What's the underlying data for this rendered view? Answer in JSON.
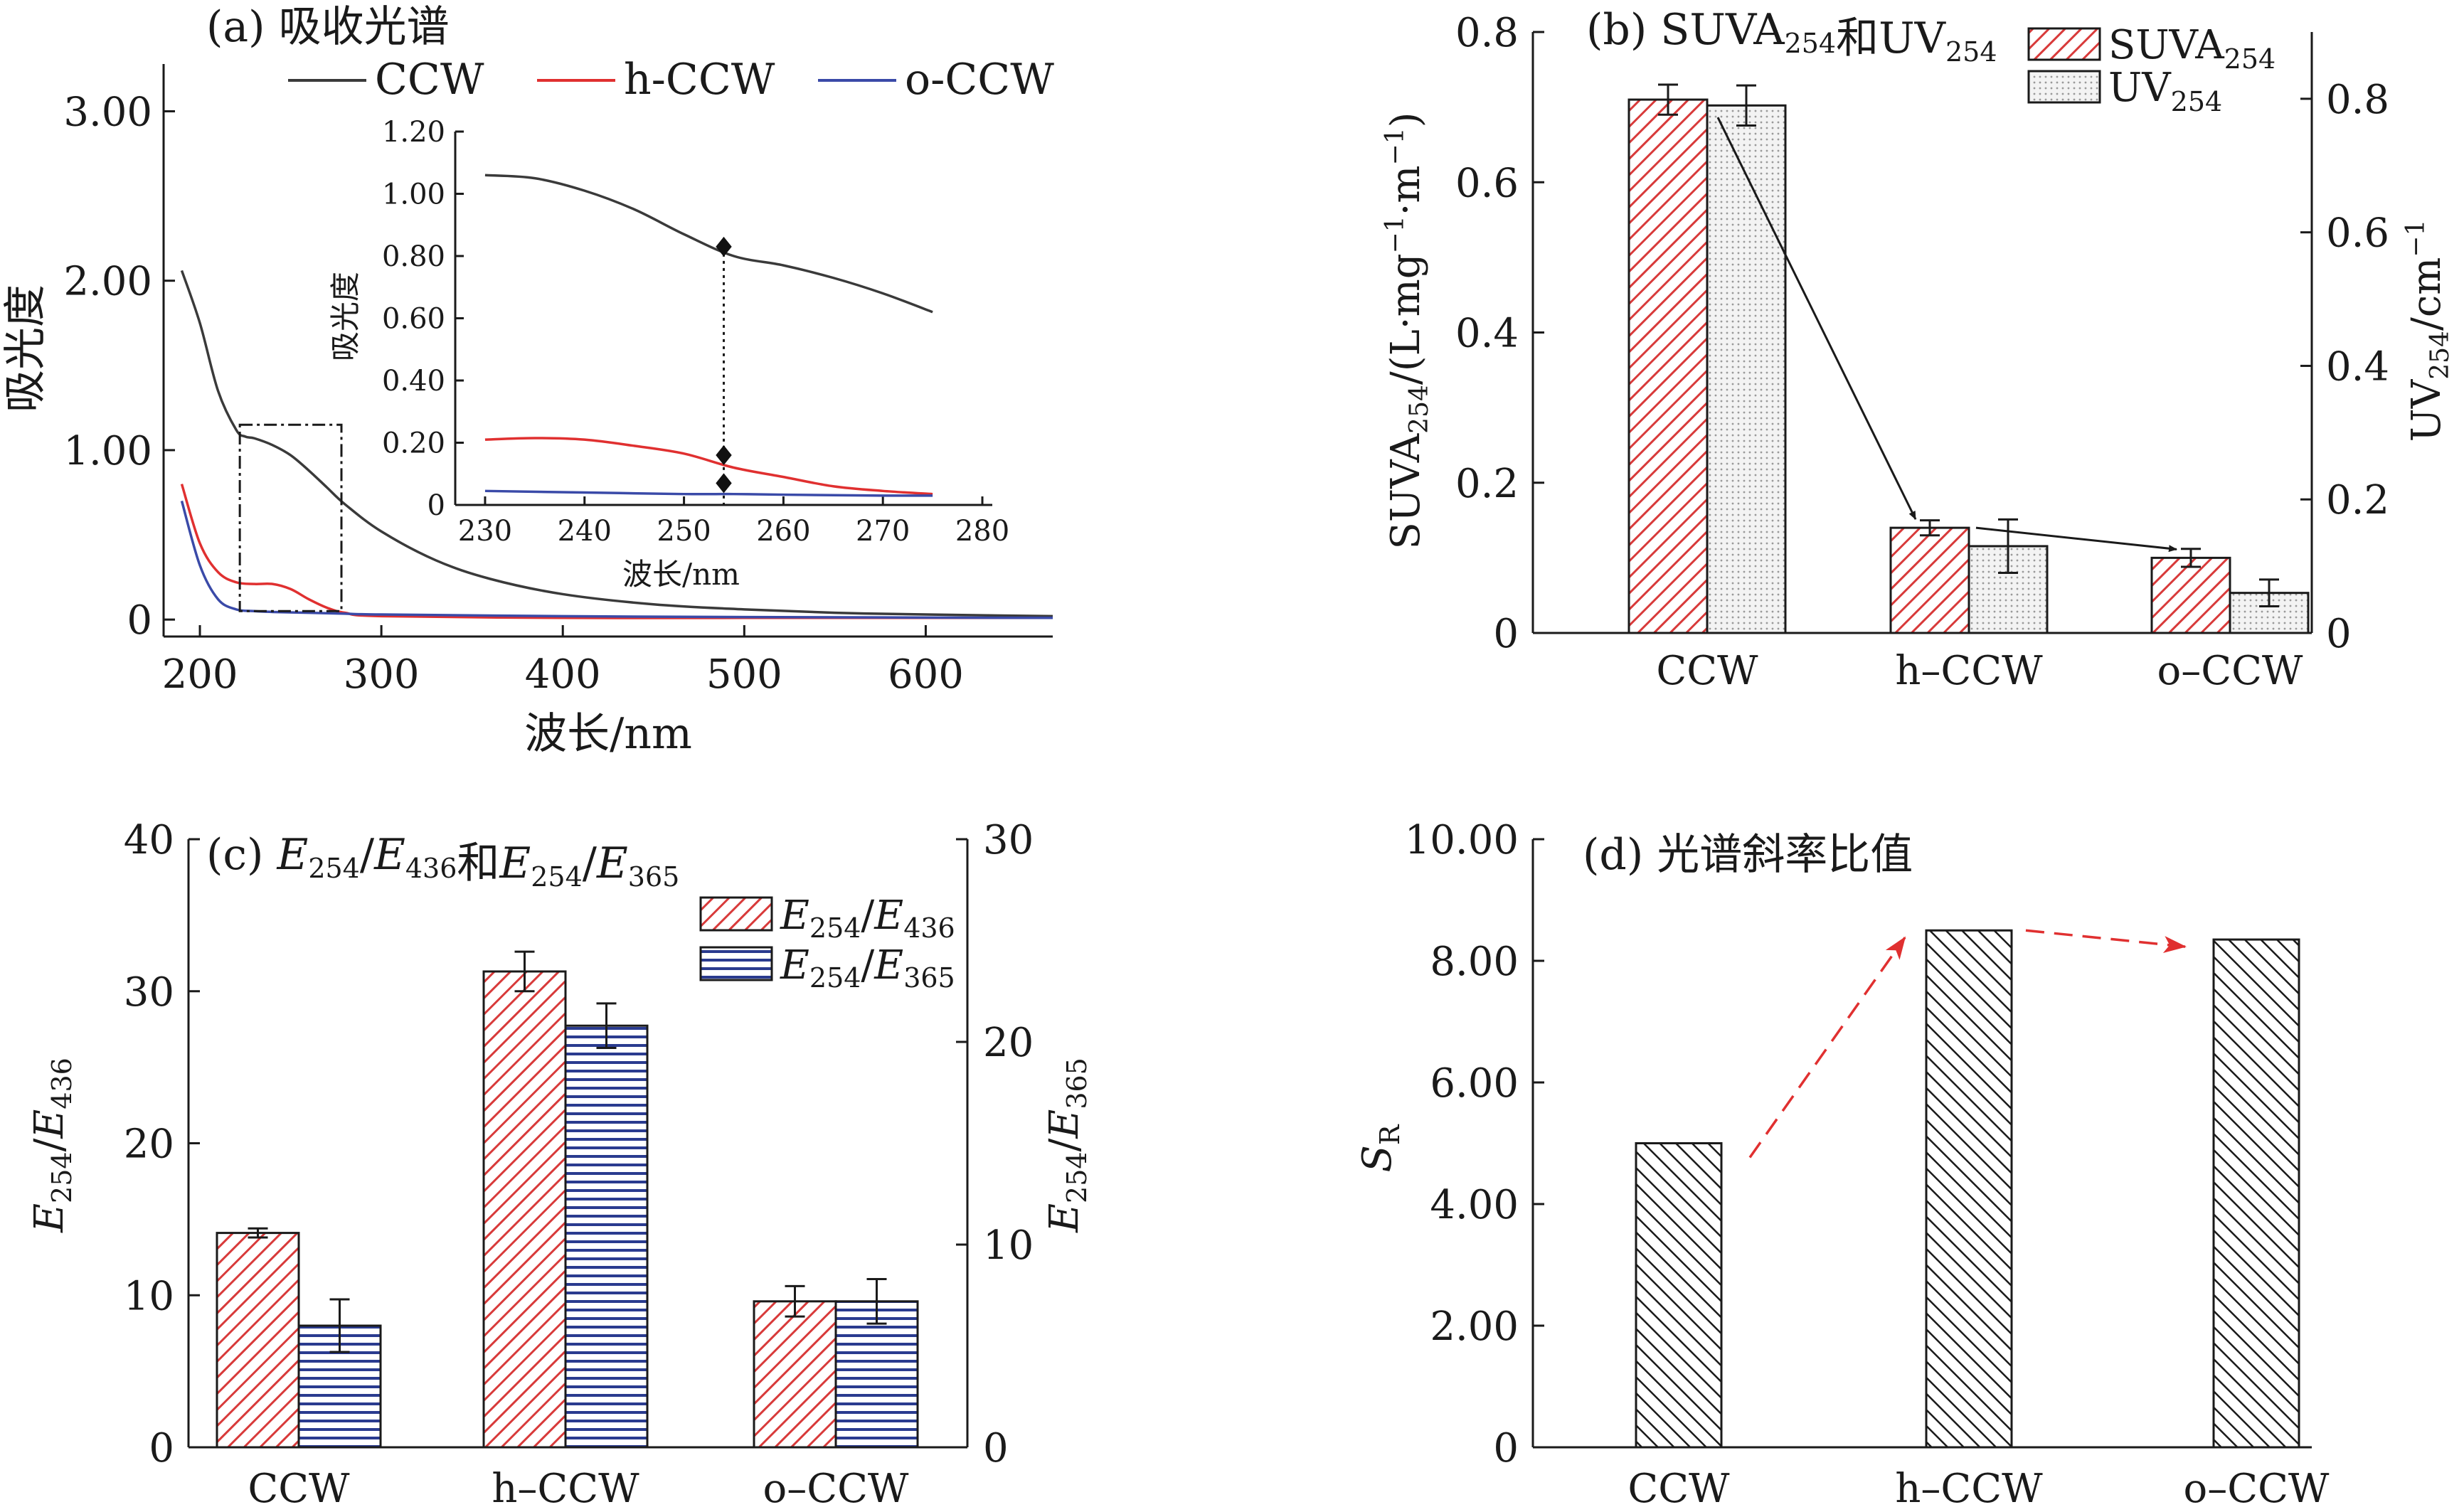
{
  "chart_data": [
    {
      "panel": "a",
      "type": "line",
      "title": "(a) 吸收光谱",
      "xlabel": "波长/nm",
      "ylabel": "吸光度",
      "xlim": [
        180,
        670
      ],
      "ylim": [
        -0.1,
        3.3
      ],
      "xticks": [
        200,
        300,
        400,
        500,
        600
      ],
      "xtick_labels": [
        "200",
        "300",
        "400",
        "500",
        "600"
      ],
      "yticks": [
        0,
        1,
        2,
        3
      ],
      "ytick_labels": [
        "0",
        "1.00",
        "2.00",
        "3.00"
      ],
      "legend_position": "top",
      "series": [
        {
          "name": "CCW",
          "color": "#3a3a3a",
          "x": [
            190,
            200,
            210,
            220,
            225,
            230,
            240,
            250,
            260,
            270,
            280,
            300,
            330,
            360,
            400,
            450,
            500,
            550,
            600,
            670
          ],
          "y": [
            2.06,
            1.75,
            1.35,
            1.12,
            1.08,
            1.07,
            1.03,
            0.97,
            0.88,
            0.78,
            0.68,
            0.52,
            0.35,
            0.24,
            0.15,
            0.09,
            0.06,
            0.04,
            0.03,
            0.02
          ]
        },
        {
          "name": "h-CCW",
          "color": "#e03030",
          "x": [
            190,
            200,
            210,
            220,
            230,
            240,
            250,
            260,
            270,
            280,
            300,
            400,
            500,
            670
          ],
          "y": [
            0.8,
            0.45,
            0.28,
            0.22,
            0.21,
            0.21,
            0.18,
            0.12,
            0.07,
            0.04,
            0.02,
            0.01,
            0.01,
            0.01
          ]
        },
        {
          "name": "o-CCW",
          "color": "#3a4aa8",
          "x": [
            190,
            200,
            210,
            220,
            230,
            240,
            260,
            280,
            300,
            400,
            500,
            670
          ],
          "y": [
            0.7,
            0.32,
            0.12,
            0.06,
            0.05,
            0.045,
            0.04,
            0.035,
            0.03,
            0.02,
            0.015,
            0.01
          ]
        }
      ],
      "inset": {
        "xlabel": "波长/nm",
        "ylabel": "吸光度",
        "xlim": [
          227,
          281
        ],
        "ylim": [
          0,
          1.2
        ],
        "xticks": [
          230,
          240,
          250,
          260,
          270,
          280
        ],
        "xtick_labels": [
          "230",
          "240",
          "250",
          "260",
          "270",
          "280"
        ],
        "yticks": [
          0,
          0.2,
          0.4,
          0.6,
          0.8,
          1.0,
          1.2
        ],
        "ytick_labels": [
          "0",
          "0.20",
          "0.40",
          "0.60",
          "0.80",
          "1.00",
          "1.20"
        ],
        "series": [
          {
            "name": "CCW",
            "color": "#3a3a3a",
            "x": [
              230,
              235,
              240,
              245,
              250,
              255,
              260,
              265,
              270,
              275
            ],
            "y": [
              1.06,
              1.05,
              1.01,
              0.95,
              0.87,
              0.8,
              0.77,
              0.73,
              0.68,
              0.62
            ]
          },
          {
            "name": "h-CCW",
            "color": "#e03030",
            "x": [
              230,
              235,
              240,
              245,
              250,
              255,
              260,
              265,
              270,
              275
            ],
            "y": [
              0.21,
              0.215,
              0.21,
              0.19,
              0.165,
              0.12,
              0.09,
              0.06,
              0.045,
              0.035
            ]
          },
          {
            "name": "o-CCW",
            "color": "#3a4aa8",
            "x": [
              230,
              240,
              250,
              255,
              260,
              270,
              275
            ],
            "y": [
              0.045,
              0.04,
              0.035,
              0.035,
              0.033,
              0.03,
              0.03
            ]
          }
        ],
        "markers_x": 254,
        "markers_y": [
          0.83,
          0.16,
          0.07
        ]
      },
      "zoom_box": {
        "x": [
          222,
          278
        ],
        "y": [
          0.05,
          1.15
        ]
      }
    },
    {
      "panel": "b",
      "type": "bar",
      "title_prefix": "(b)",
      "title_parts": [
        [
          "SUVA",
          "254"
        ],
        [
          "和UV",
          "254"
        ]
      ],
      "categories": [
        "CCW",
        "h–CCW",
        "o–CCW"
      ],
      "ylabel_left": "SUVA254/(L·mg−1·m−1)",
      "ylabel_right": "UV254/cm−1",
      "ylim_left": [
        0,
        0.8
      ],
      "ylim_right": [
        0,
        0.9
      ],
      "yticks_left": [
        0,
        0.2,
        0.4,
        0.6,
        0.8
      ],
      "ytick_labels_left": [
        "0",
        "0.2",
        "0.4",
        "0.6",
        "0.8"
      ],
      "yticks_right": [
        0,
        0.2,
        0.4,
        0.6,
        0.8
      ],
      "ytick_labels_right": [
        "0",
        "0.2",
        "0.4",
        "0.6",
        "0.8"
      ],
      "legend_position": "top-right",
      "series": [
        {
          "name": "SUVA",
          "sub": "254",
          "axis": "left",
          "pattern": "red-diag",
          "values": [
            0.71,
            0.14,
            0.1
          ],
          "errors": [
            0.02,
            0.01,
            0.012
          ]
        },
        {
          "name": "UV",
          "sub": "254",
          "axis": "right",
          "pattern": "dots",
          "values": [
            0.79,
            0.13,
            0.06
          ],
          "errors": [
            0.03,
            0.04,
            0.02
          ]
        }
      ],
      "annotation_arrows": [
        [
          0,
          1
        ],
        [
          1,
          2
        ]
      ]
    },
    {
      "panel": "c",
      "type": "bar",
      "title_prefix": "(c)",
      "categories": [
        "CCW",
        "h–CCW",
        "o–CCW"
      ],
      "ylim_left": [
        0,
        40
      ],
      "ylim_right": [
        0,
        30
      ],
      "yticks_left": [
        0,
        10,
        20,
        30,
        40
      ],
      "ytick_labels_left": [
        "0",
        "10",
        "20",
        "30",
        "40"
      ],
      "yticks_right": [
        0,
        10,
        20,
        30
      ],
      "ytick_labels_right": [
        "0",
        "10",
        "20",
        "30"
      ],
      "legend_position": "top-right",
      "series": [
        {
          "name": "E254/E436",
          "axis": "left",
          "pattern": "red-diag",
          "values": [
            14.1,
            31.3,
            9.6
          ],
          "errors": [
            0.3,
            1.3,
            1.0
          ]
        },
        {
          "name": "E254/E365",
          "axis": "right",
          "pattern": "blue-horiz",
          "values": [
            6.0,
            20.8,
            7.2
          ],
          "errors": [
            1.3,
            1.1,
            1.1
          ]
        }
      ],
      "text_parts": {
        "E": "E",
        "s254": "254",
        "s436": "436",
        "s365": "365",
        "slash": "/",
        "and": "和"
      }
    },
    {
      "panel": "d",
      "type": "bar",
      "title": "(d)  光谱斜率比值",
      "categories": [
        "CCW",
        "h–CCW",
        "o–CCW"
      ],
      "ylabel_main": "S",
      "ylabel_sub": "R",
      "ylim": [
        0,
        10
      ],
      "yticks": [
        0,
        2,
        4,
        6,
        8,
        10
      ],
      "ytick_labels": [
        "0",
        "2.00",
        "4.00",
        "6.00",
        "8.00",
        "10.00"
      ],
      "series": [
        {
          "name": "",
          "pattern": "black-diag",
          "values": [
            5.0,
            8.5,
            8.35
          ]
        }
      ],
      "annotation_arrows": [
        [
          0,
          1
        ],
        [
          1,
          2
        ]
      ],
      "arrow_color": "#e03030"
    }
  ]
}
